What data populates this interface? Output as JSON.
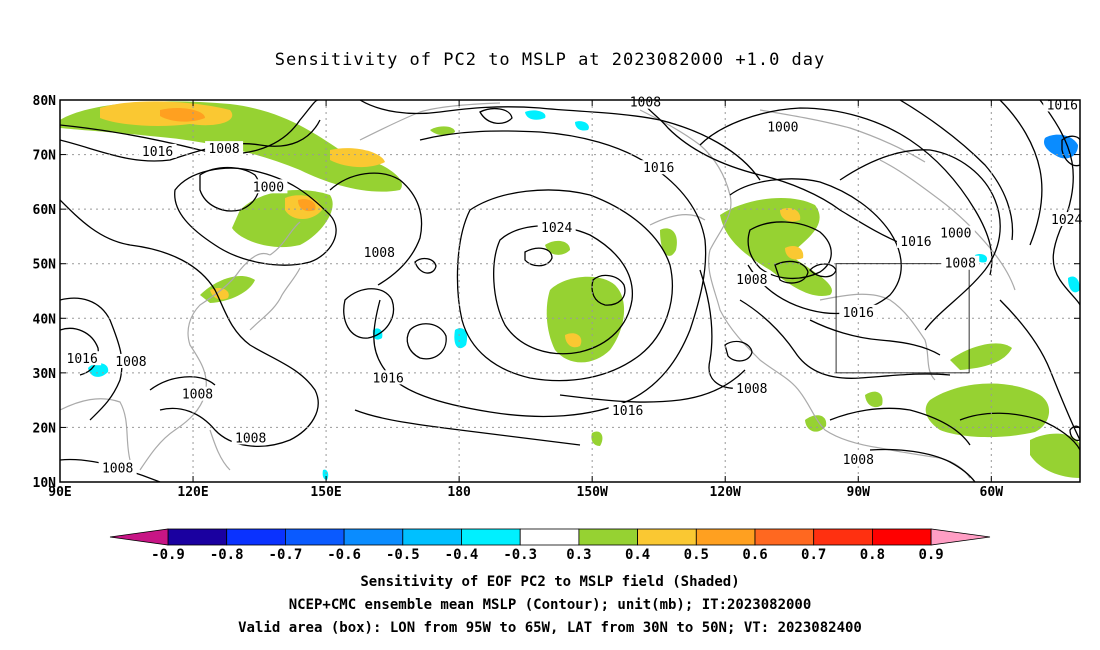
{
  "title": "Sensitivity of PC2 to MSLP at 2023082000 +1.0 day",
  "map": {
    "lat_labels": [
      "80N",
      "70N",
      "60N",
      "50N",
      "40N",
      "30N",
      "20N",
      "10N"
    ],
    "lat_values": [
      80,
      70,
      60,
      50,
      40,
      30,
      20,
      10
    ],
    "lon_labels": [
      "90E",
      "120E",
      "150E",
      "180",
      "150W",
      "120W",
      "90W",
      "60W"
    ],
    "lon_values": [
      90,
      120,
      150,
      180,
      210,
      240,
      270,
      300
    ],
    "lon_range": [
      90,
      320
    ],
    "lat_range": [
      10,
      80
    ],
    "valid_box": {
      "lon": [
        265,
        295
      ],
      "lat": [
        30,
        50
      ]
    },
    "contour_labels": [
      {
        "text": "1008",
        "lon": 127,
        "lat": 71
      },
      {
        "text": "1016",
        "lon": 112,
        "lat": 70.5
      },
      {
        "text": "1000",
        "lon": 137,
        "lat": 64
      },
      {
        "text": "1008",
        "lon": 162,
        "lat": 52
      },
      {
        "text": "1016",
        "lon": 164,
        "lat": 29
      },
      {
        "text": "1016",
        "lon": 95,
        "lat": 32.5
      },
      {
        "text": "1008",
        "lon": 106,
        "lat": 32
      },
      {
        "text": "1008",
        "lon": 121,
        "lat": 26
      },
      {
        "text": "1008",
        "lon": 133,
        "lat": 18
      },
      {
        "text": "1008",
        "lon": 103,
        "lat": 12.5
      },
      {
        "text": "1024",
        "lon": 202,
        "lat": 56.5
      },
      {
        "text": "1016",
        "lon": 225,
        "lat": 67.5
      },
      {
        "text": "1016",
        "lon": 218,
        "lat": 23
      },
      {
        "text": "1008",
        "lon": 222,
        "lat": 79.5
      },
      {
        "text": "1000",
        "lon": 253,
        "lat": 75
      },
      {
        "text": "1008",
        "lon": 246,
        "lat": 47
      },
      {
        "text": "1008",
        "lon": 246,
        "lat": 27
      },
      {
        "text": "1016",
        "lon": 270,
        "lat": 41
      },
      {
        "text": "1016",
        "lon": 283,
        "lat": 54
      },
      {
        "text": "1000",
        "lon": 292,
        "lat": 55.5
      },
      {
        "text": "1008",
        "lon": 293,
        "lat": 50
      },
      {
        "text": "1016",
        "lon": 316,
        "lat": 79
      },
      {
        "text": "1024",
        "lon": 317,
        "lat": 58
      },
      {
        "text": "1008",
        "lon": 270,
        "lat": 14
      }
    ]
  },
  "colorbar": {
    "labels": [
      "-0.9",
      "-0.8",
      "-0.7",
      "-0.6",
      "-0.5",
      "-0.4",
      "-0.3",
      "0.3",
      "0.4",
      "0.5",
      "0.6",
      "0.7",
      "0.8",
      "0.9"
    ],
    "colors": [
      "#1a00a0",
      "#0a32ff",
      "#0a5aff",
      "#0a8cff",
      "#00c0ff",
      "#00f0ff",
      "#ffffff",
      "#96d232",
      "#fac832",
      "#ffa020",
      "#ff6820",
      "#ff3010",
      "#ff0000"
    ],
    "left_tip_color": "#c71585",
    "right_tip_color": "#ff9ec4"
  },
  "captions": [
    "Sensitivity of EOF PC2 to MSLP field (Shaded)",
    "NCEP+CMC ensemble mean MSLP (Contour); unit(mb); IT:2023082000",
    "Valid area (box): LON from 95W to 65W, LAT from 30N to 50N; VT: 2023082400"
  ]
}
